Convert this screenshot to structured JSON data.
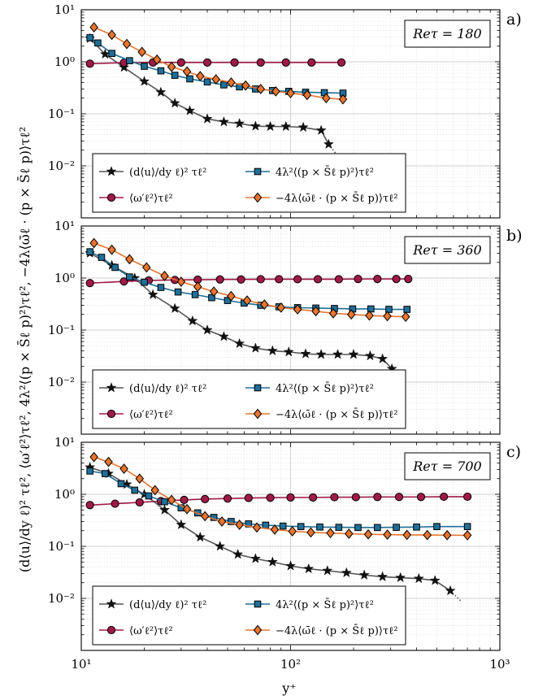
{
  "figure": {
    "xlabel": "y⁺",
    "ylabel": "(d⟨u⟩/dy ℓ)² τℓ²,  ⟨ω′ℓ²⟩τℓ²,  4λ²⟨(p × S̄ℓ p)²⟩τℓ²,  −4λ⟨ω̄ℓ · (p × S̄ℓ p)⟩τℓ²",
    "x_tick_labels": [
      "10¹",
      "10²",
      "10³"
    ],
    "y_tick_labels": [
      "10⁻²",
      "10⁻¹",
      "10⁰",
      "10¹"
    ]
  },
  "legend": {
    "entries": [
      {
        "key": "mean",
        "label": "(d⟨u⟩/dy ℓ)² τℓ²",
        "marker": "star"
      },
      {
        "key": "sp",
        "label": "4λ²⟨(p × S̄ℓ p)²⟩τℓ²",
        "marker": "square"
      },
      {
        "key": "omega",
        "label": "⟨ω′ℓ²⟩τℓ²",
        "marker": "circle"
      },
      {
        "key": "vs",
        "label": "−4λ⟨ω̄ℓ · (p × S̄ℓ p)⟩τℓ²",
        "marker": "diamond"
      }
    ]
  },
  "colors": {
    "mean": "#4a4a4a",
    "omega": "#a01a46",
    "sp": "#1f6f99",
    "vs": "#e8742e"
  },
  "chart_data": [
    {
      "type": "line",
      "panel": "a)",
      "re_label": "Reτ = 180",
      "xscale": "log",
      "yscale": "log",
      "xlim": [
        10,
        1000
      ],
      "ylim": [
        0.001,
        10
      ],
      "grid": true,
      "legend_position": "bottom-left",
      "series": [
        {
          "key": "mean",
          "x": [
            11,
            13,
            16,
            20,
            24,
            28,
            33,
            40,
            48,
            57,
            68,
            80,
            95,
            115,
            140,
            152,
            165
          ],
          "y": [
            2.8,
            1.4,
            0.78,
            0.42,
            0.26,
            0.16,
            0.115,
            0.08,
            0.07,
            0.065,
            0.058,
            0.057,
            0.057,
            0.055,
            0.048,
            0.026,
            0.017
          ]
        },
        {
          "key": "omega",
          "x": [
            11,
            16,
            22,
            30,
            40,
            54,
            72,
            95,
            126,
            175
          ],
          "y": [
            0.92,
            0.96,
            0.97,
            0.97,
            0.97,
            0.97,
            0.97,
            0.97,
            0.97,
            0.97
          ]
        },
        {
          "key": "sp",
          "x": [
            11,
            12,
            14,
            17,
            20,
            24,
            28,
            33,
            40,
            48,
            57,
            68,
            82,
            98,
            118,
            145,
            178
          ],
          "y": [
            2.9,
            2.3,
            1.45,
            1.05,
            0.82,
            0.67,
            0.55,
            0.47,
            0.41,
            0.36,
            0.33,
            0.3,
            0.28,
            0.27,
            0.26,
            0.255,
            0.25
          ]
        },
        {
          "key": "vs",
          "x": [
            11.5,
            14,
            16.5,
            19.5,
            23,
            27,
            32,
            37,
            44,
            52,
            61,
            72,
            85,
            100,
            120,
            148,
            178
          ],
          "y": [
            4.6,
            3.3,
            2.2,
            1.55,
            1.1,
            0.8,
            0.65,
            0.53,
            0.46,
            0.4,
            0.35,
            0.3,
            0.27,
            0.25,
            0.23,
            0.2,
            0.19
          ]
        }
      ]
    },
    {
      "type": "line",
      "panel": "b)",
      "re_label": "Reτ = 360",
      "xscale": "log",
      "yscale": "log",
      "xlim": [
        10,
        1000
      ],
      "ylim": [
        0.001,
        10
      ],
      "grid": true,
      "legend_position": "bottom-left",
      "series": [
        {
          "key": "mean",
          "x": [
            11,
            14,
            18,
            22,
            28,
            34,
            40,
            48,
            57,
            68,
            82,
            98,
            118,
            140,
            168,
            200,
            240,
            275,
            305,
            330
          ],
          "y": [
            3.0,
            1.75,
            1.0,
            0.48,
            0.26,
            0.15,
            0.1,
            0.075,
            0.055,
            0.045,
            0.04,
            0.038,
            0.035,
            0.034,
            0.034,
            0.034,
            0.032,
            0.028,
            0.018,
            0.009
          ]
        },
        {
          "key": "omega",
          "x": [
            11,
            16,
            21,
            28,
            36,
            46,
            58,
            72,
            88,
            108,
            135,
            170,
            210,
            260,
            320,
            365
          ],
          "y": [
            0.8,
            0.86,
            0.9,
            0.92,
            0.93,
            0.94,
            0.94,
            0.95,
            0.95,
            0.95,
            0.95,
            0.95,
            0.96,
            0.96,
            0.96,
            0.96
          ]
        },
        {
          "key": "sp",
          "x": [
            11,
            12.5,
            14.5,
            17,
            20,
            24,
            29,
            35,
            42,
            50,
            60,
            72,
            88,
            108,
            132,
            162,
            198,
            242,
            295,
            360
          ],
          "y": [
            3.2,
            2.5,
            1.6,
            1.05,
            0.83,
            0.66,
            0.54,
            0.48,
            0.42,
            0.37,
            0.33,
            0.3,
            0.28,
            0.27,
            0.265,
            0.26,
            0.255,
            0.255,
            0.25,
            0.25
          ]
        },
        {
          "key": "vs",
          "x": [
            11.5,
            14,
            17,
            20.5,
            25,
            30,
            36,
            43,
            52,
            62,
            75,
            90,
            108,
            132,
            160,
            195,
            238,
            290,
            355
          ],
          "y": [
            4.7,
            3.5,
            2.3,
            1.6,
            1.1,
            0.85,
            0.68,
            0.55,
            0.45,
            0.37,
            0.31,
            0.27,
            0.25,
            0.23,
            0.21,
            0.2,
            0.19,
            0.185,
            0.18
          ]
        }
      ]
    },
    {
      "type": "line",
      "panel": "c)",
      "re_label": "Reτ = 700",
      "xscale": "log",
      "yscale": "log",
      "xlim": [
        10,
        1000
      ],
      "ylim": [
        0.001,
        10
      ],
      "grid": true,
      "legend_position": "bottom-left",
      "series": [
        {
          "key": "mean",
          "x": [
            11,
            13.5,
            16.5,
            20,
            25,
            30,
            37,
            46,
            56,
            68,
            82,
            100,
            122,
            150,
            185,
            225,
            275,
            335,
            410,
            490,
            580,
            650
          ],
          "y": [
            3.3,
            2.5,
            1.55,
            1.0,
            0.5,
            0.26,
            0.15,
            0.1,
            0.07,
            0.058,
            0.05,
            0.042,
            0.037,
            0.034,
            0.031,
            0.028,
            0.026,
            0.025,
            0.024,
            0.022,
            0.014,
            0.009
          ]
        },
        {
          "key": "omega",
          "x": [
            11,
            14.5,
            19,
            24,
            31,
            39,
            50,
            63,
            80,
            100,
            128,
            162,
            205,
            260,
            330,
            420,
            540,
            700
          ],
          "y": [
            0.62,
            0.66,
            0.7,
            0.74,
            0.78,
            0.81,
            0.83,
            0.85,
            0.86,
            0.87,
            0.87,
            0.88,
            0.88,
            0.89,
            0.89,
            0.89,
            0.9,
            0.9
          ]
        },
        {
          "key": "sp",
          "x": [
            11,
            13,
            15.5,
            18,
            21,
            25,
            30,
            36,
            43,
            52,
            63,
            76,
            92,
            112,
            138,
            170,
            210,
            260,
            320,
            400,
            500,
            700
          ],
          "y": [
            2.8,
            2.5,
            1.6,
            1.2,
            0.93,
            0.72,
            0.55,
            0.44,
            0.36,
            0.3,
            0.27,
            0.255,
            0.245,
            0.24,
            0.235,
            0.232,
            0.23,
            0.23,
            0.232,
            0.235,
            0.24,
            0.24
          ]
        },
        {
          "key": "vs",
          "x": [
            11.5,
            13.5,
            16,
            19,
            22.5,
            27,
            32,
            39,
            47,
            57,
            69,
            84,
            102,
            125,
            155,
            190,
            235,
            290,
            360,
            450,
            560,
            700
          ],
          "y": [
            5.2,
            4.2,
            3.1,
            2.0,
            1.2,
            0.78,
            0.52,
            0.38,
            0.3,
            0.26,
            0.23,
            0.21,
            0.195,
            0.185,
            0.18,
            0.175,
            0.17,
            0.168,
            0.166,
            0.165,
            0.164,
            0.163
          ]
        }
      ]
    }
  ]
}
